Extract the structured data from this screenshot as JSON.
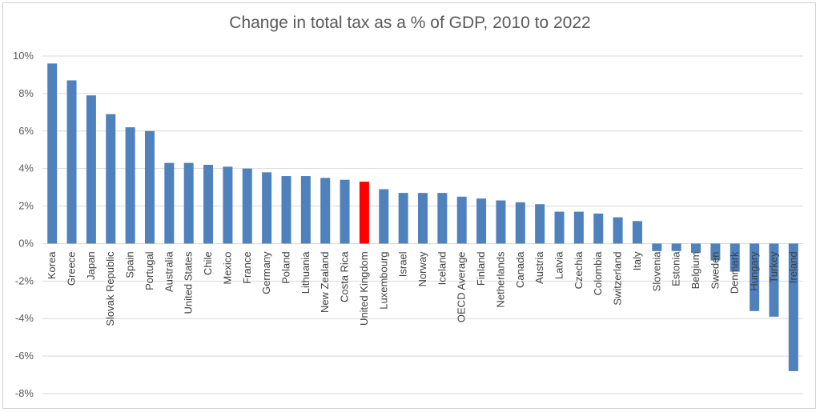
{
  "chart_data": {
    "type": "bar",
    "title": "Change in total tax as a % of GDP, 2010 to 2022",
    "xlabel": "",
    "ylabel": "",
    "ylim": [
      -8,
      10
    ],
    "yticks": [
      "10%",
      "8%",
      "6%",
      "4%",
      "2%",
      "0%",
      "-2%",
      "-4%",
      "-6%",
      "-8%"
    ],
    "grid": true,
    "legend": "none",
    "bar_color": "#4f81bd",
    "highlight_color": "#ff0000",
    "highlight_category": "United Kingdom",
    "categories": [
      "Korea",
      "Greece",
      "Japan",
      "Slovak Republic",
      "Spain",
      "Portugal",
      "Australia",
      "United States",
      "Chile",
      "Mexico",
      "France",
      "Germany",
      "Poland",
      "Lithuania",
      "New Zealand",
      "Costa Rica",
      "United Kingdom",
      "Luxembourg",
      "Israel",
      "Norway",
      "Iceland",
      "OECD Average",
      "Finland",
      "Netherlands",
      "Canada",
      "Austria",
      "Latvia",
      "Czechia",
      "Colombia",
      "Switzerland",
      "Italy",
      "Slovenia",
      "Estonia",
      "Belgium",
      "Sweden",
      "Denmark",
      "Hungary",
      "Turkey",
      "Ireland"
    ],
    "values": [
      9.6,
      8.7,
      7.9,
      6.9,
      6.2,
      6.0,
      4.3,
      4.3,
      4.2,
      4.1,
      4.0,
      3.8,
      3.6,
      3.6,
      3.5,
      3.4,
      3.3,
      2.9,
      2.7,
      2.7,
      2.7,
      2.5,
      2.4,
      2.3,
      2.2,
      2.1,
      1.7,
      1.7,
      1.6,
      1.4,
      1.2,
      -0.4,
      -0.4,
      -0.5,
      -0.9,
      -1.5,
      -3.6,
      -3.9,
      -6.8
    ]
  }
}
